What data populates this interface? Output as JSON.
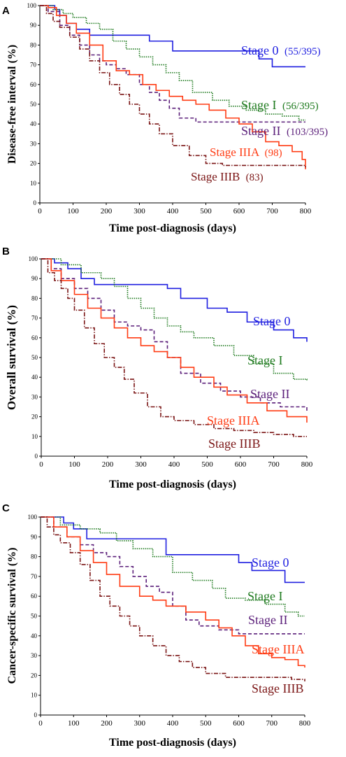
{
  "chart_data": [
    {
      "panel": "A",
      "type": "line",
      "xlabel": "Time post-diagnosis (days)",
      "ylabel": "Disease-free interval (%)",
      "xlim": [
        0,
        800
      ],
      "ylim": [
        0,
        100
      ],
      "xticks": [
        0,
        100,
        200,
        300,
        400,
        500,
        600,
        700,
        800
      ],
      "yticks": [
        0,
        10,
        20,
        30,
        40,
        50,
        60,
        70,
        80,
        90,
        100
      ],
      "series": [
        {
          "name": "Stage 0",
          "annotation": "(55/395)",
          "color": "#1f1fe0",
          "dash": "solid",
          "x": [
            0,
            30,
            45,
            60,
            80,
            110,
            150,
            190,
            250,
            330,
            400,
            660,
            700,
            800
          ],
          "y": [
            100,
            100,
            98,
            95,
            91,
            88,
            85,
            85,
            85,
            82,
            77,
            73,
            69,
            69
          ]
        },
        {
          "name": "Stage I",
          "annotation": "(56/395)",
          "color": "#1e7a1e",
          "dash": "dotted",
          "x": [
            0,
            40,
            70,
            100,
            140,
            180,
            220,
            260,
            300,
            340,
            380,
            420,
            460,
            520,
            570,
            620,
            680,
            730,
            780,
            800
          ],
          "y": [
            100,
            98,
            96,
            94,
            91,
            88,
            82,
            78,
            74,
            70,
            66,
            62,
            56,
            52,
            49,
            47,
            45,
            44,
            42,
            42
          ]
        },
        {
          "name": "Stage II",
          "annotation": "(103/395)",
          "color": "#5b1f7a",
          "dash": "dashed",
          "x": [
            0,
            25,
            60,
            90,
            120,
            150,
            180,
            200,
            230,
            260,
            300,
            330,
            360,
            390,
            420,
            470,
            540,
            620,
            700,
            800
          ],
          "y": [
            100,
            97,
            90,
            85,
            80,
            75,
            72,
            70,
            68,
            65,
            60,
            56,
            52,
            48,
            43,
            41,
            41,
            41,
            41,
            41
          ]
        },
        {
          "name": "Stage IIIA",
          "annotation": "(98)",
          "color": "#ff3c14",
          "dash": "solid",
          "x": [
            0,
            25,
            50,
            80,
            110,
            150,
            190,
            230,
            270,
            310,
            350,
            390,
            430,
            470,
            510,
            560,
            600,
            640,
            680,
            720,
            760,
            790,
            800
          ],
          "y": [
            100,
            99,
            95,
            91,
            86,
            80,
            72,
            67,
            65,
            60,
            57,
            54,
            52,
            50,
            47,
            43,
            40,
            36,
            31,
            29,
            26,
            22,
            17
          ]
        },
        {
          "name": "Stage IIIB",
          "annotation": "(83)",
          "color": "#7a1414",
          "dash": "dashdot",
          "x": [
            0,
            20,
            40,
            60,
            90,
            120,
            150,
            180,
            210,
            240,
            270,
            300,
            330,
            360,
            400,
            450,
            500,
            550,
            600,
            650,
            700,
            750,
            800
          ],
          "y": [
            100,
            96,
            92,
            89,
            84,
            78,
            72,
            66,
            60,
            55,
            50,
            45,
            40,
            35,
            29,
            24,
            20,
            19,
            19,
            19,
            19,
            19,
            18
          ]
        }
      ]
    },
    {
      "panel": "B",
      "type": "line",
      "xlabel": "Time post-diagnosis (days)",
      "ylabel": "Overall survival (%)",
      "xlim": [
        0,
        800
      ],
      "ylim": [
        0,
        100
      ],
      "xticks": [
        0,
        100,
        200,
        300,
        400,
        500,
        600,
        700,
        800
      ],
      "yticks": [
        0,
        10,
        20,
        30,
        40,
        50,
        60,
        70,
        80,
        90,
        100
      ],
      "series": [
        {
          "name": "Stage 0",
          "color": "#1f1fe0",
          "dash": "solid",
          "x": [
            0,
            40,
            80,
            120,
            160,
            300,
            380,
            420,
            500,
            560,
            620,
            700,
            760,
            800
          ],
          "y": [
            100,
            98,
            95,
            90,
            87,
            87,
            85,
            80,
            75,
            73,
            68,
            64,
            60,
            58
          ]
        },
        {
          "name": "Stage I",
          "color": "#1e7a1e",
          "dash": "dotted",
          "x": [
            0,
            60,
            120,
            180,
            220,
            260,
            300,
            340,
            380,
            420,
            460,
            520,
            580,
            640,
            700,
            760,
            800
          ],
          "y": [
            100,
            97,
            93,
            90,
            86,
            80,
            75,
            70,
            66,
            63,
            60,
            56,
            51,
            47,
            42,
            39,
            38
          ]
        },
        {
          "name": "Stage II",
          "color": "#5b1f7a",
          "dash": "dashed",
          "x": [
            0,
            30,
            60,
            100,
            140,
            180,
            220,
            260,
            300,
            340,
            380,
            420,
            480,
            540,
            600,
            660,
            720,
            800
          ],
          "y": [
            100,
            95,
            90,
            85,
            80,
            74,
            68,
            66,
            64,
            58,
            50,
            42,
            37,
            33,
            30,
            27,
            25,
            23
          ]
        },
        {
          "name": "Stage IIIA",
          "color": "#ff3c14",
          "dash": "solid",
          "x": [
            0,
            30,
            60,
            100,
            140,
            180,
            220,
            260,
            300,
            340,
            380,
            420,
            460,
            520,
            560,
            620,
            680,
            740,
            800
          ],
          "y": [
            100,
            94,
            89,
            82,
            75,
            70,
            65,
            60,
            56,
            53,
            50,
            45,
            40,
            35,
            31,
            27,
            23,
            20,
            17
          ]
        },
        {
          "name": "Stage IIIB",
          "color": "#7a1414",
          "dash": "dashdot",
          "x": [
            0,
            20,
            40,
            60,
            80,
            100,
            130,
            160,
            190,
            220,
            250,
            280,
            320,
            360,
            400,
            460,
            520,
            580,
            640,
            700,
            760,
            800
          ],
          "y": [
            100,
            93,
            89,
            85,
            80,
            74,
            65,
            57,
            50,
            45,
            39,
            32,
            25,
            20,
            18,
            16,
            14,
            13,
            12,
            11,
            10,
            10
          ]
        }
      ]
    },
    {
      "panel": "C",
      "type": "line",
      "xlabel": "Time post-diagnosis (days)",
      "ylabel": "Cancer-specific survival (%)",
      "xlim": [
        0,
        800
      ],
      "ylim": [
        0,
        100
      ],
      "xticks": [
        0,
        100,
        200,
        300,
        400,
        500,
        600,
        700,
        800
      ],
      "yticks": [
        0,
        10,
        20,
        30,
        40,
        50,
        60,
        70,
        80,
        90,
        100
      ],
      "series": [
        {
          "name": "Stage 0",
          "color": "#1f1fe0",
          "dash": "solid",
          "x": [
            0,
            40,
            70,
            100,
            140,
            300,
            380,
            520,
            600,
            640,
            740,
            800
          ],
          "y": [
            100,
            100,
            97,
            94,
            89,
            89,
            81,
            81,
            77,
            73,
            67,
            67
          ]
        },
        {
          "name": "Stage I",
          "color": "#1e7a1e",
          "dash": "dotted",
          "x": [
            0,
            60,
            120,
            180,
            230,
            280,
            340,
            400,
            460,
            520,
            560,
            620,
            680,
            740,
            780,
            800
          ],
          "y": [
            100,
            96,
            94,
            92,
            88,
            84,
            80,
            72,
            68,
            64,
            59,
            58,
            56,
            52,
            50,
            50
          ]
        },
        {
          "name": "Stage II",
          "color": "#5b1f7a",
          "dash": "dashed",
          "x": [
            0,
            40,
            80,
            120,
            160,
            200,
            240,
            280,
            320,
            360,
            400,
            440,
            480,
            540,
            600,
            660,
            720,
            800
          ],
          "y": [
            100,
            95,
            90,
            86,
            82,
            80,
            75,
            70,
            65,
            62,
            55,
            48,
            45,
            43,
            41,
            41,
            41,
            41
          ]
        },
        {
          "name": "Stage IIIA",
          "color": "#ff3c14",
          "dash": "solid",
          "x": [
            0,
            40,
            80,
            120,
            160,
            200,
            240,
            300,
            340,
            380,
            440,
            500,
            540,
            580,
            620,
            660,
            700,
            740,
            780,
            800
          ],
          "y": [
            100,
            95,
            90,
            83,
            77,
            71,
            65,
            60,
            58,
            55,
            52,
            48,
            44,
            40,
            35,
            31,
            29,
            28,
            25,
            24
          ]
        },
        {
          "name": "Stage IIIB",
          "color": "#7a1414",
          "dash": "dashdot",
          "x": [
            0,
            20,
            40,
            60,
            90,
            120,
            150,
            180,
            210,
            240,
            270,
            300,
            340,
            380,
            420,
            460,
            500,
            560,
            620,
            700,
            760,
            800
          ],
          "y": [
            100,
            95,
            91,
            87,
            82,
            76,
            68,
            60,
            55,
            50,
            45,
            40,
            35,
            30,
            27,
            24,
            21,
            19,
            19,
            19,
            18,
            17
          ]
        }
      ]
    }
  ]
}
